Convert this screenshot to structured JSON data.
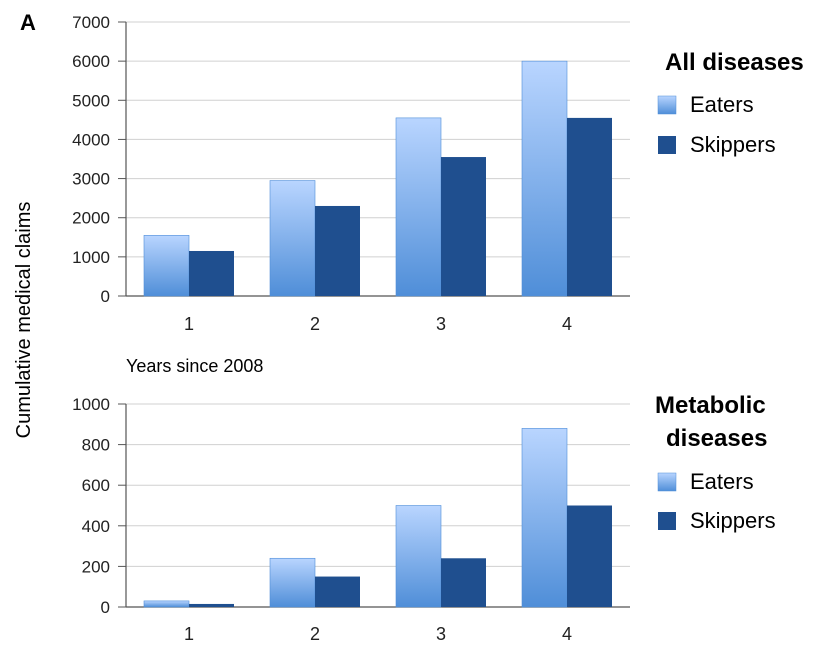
{
  "panel_label": "A",
  "ylabel": "Cumulative medical claims",
  "xlabel": "Years since 2008",
  "colors": {
    "eaters_light": "#b9d5ff",
    "eaters_dark": "#4f8ed8",
    "skippers": "#1f4f8f",
    "grid": "#d0d0d0",
    "axis": "#555555"
  },
  "chart_data": [
    {
      "type": "bar",
      "title": "All diseases",
      "categories": [
        "1",
        "2",
        "3",
        "4"
      ],
      "series": [
        {
          "name": "Eaters",
          "values": [
            1550,
            2950,
            4550,
            6000
          ]
        },
        {
          "name": "Skippers",
          "values": [
            1150,
            2300,
            3550,
            4550
          ]
        }
      ],
      "ylim": [
        0,
        7000
      ],
      "yticks": [
        0,
        1000,
        2000,
        3000,
        4000,
        5000,
        6000,
        7000
      ],
      "grid": true,
      "legend_position": "right"
    },
    {
      "type": "bar",
      "title": "Metabolic diseases",
      "categories": [
        "1",
        "2",
        "3",
        "4"
      ],
      "series": [
        {
          "name": "Eaters",
          "values": [
            30,
            240,
            500,
            880
          ]
        },
        {
          "name": "Skippers",
          "values": [
            15,
            150,
            240,
            500
          ]
        }
      ],
      "ylim": [
        0,
        1000
      ],
      "yticks": [
        0,
        200,
        400,
        600,
        800,
        1000
      ],
      "grid": true,
      "legend_position": "right"
    }
  ]
}
